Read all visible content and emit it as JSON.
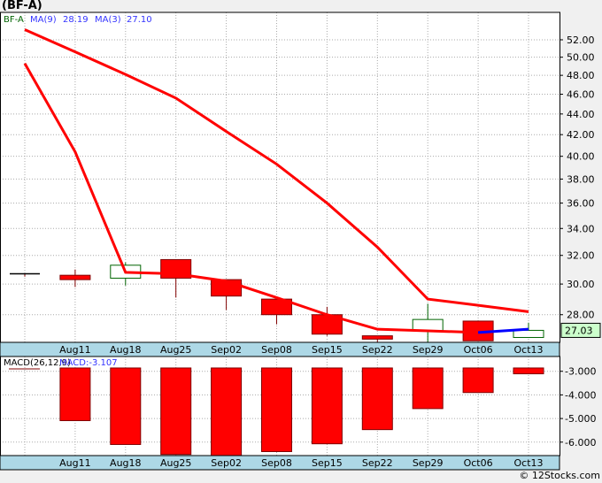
{
  "title": "(BF-A)",
  "footer": "© 12Stocks.com",
  "colors": {
    "up": "#006400",
    "down": "#ff0000",
    "ma9": "#ff0000",
    "ma3": "#ff0000",
    "ma3_last": "#0000ff",
    "band": "#add8e6",
    "last_price_bg": "#ccffcc"
  },
  "chart_data": [
    {
      "type": "candlestick",
      "title": "BF-A",
      "legend": {
        "symbol": "BF-A",
        "ma9_label": "MA(9)",
        "ma9_value": "28.19",
        "ma3_label": "MA(3)",
        "ma3_value": "27.10"
      },
      "categories": [
        "",
        "Aug11",
        "Aug18",
        "Aug25",
        "Sep02",
        "Sep08",
        "Sep15",
        "Sep22",
        "Sep29",
        "Oct06",
        "Oct13"
      ],
      "ohlc": [
        [
          30.7,
          30.7,
          30.5,
          30.7
        ],
        [
          30.6,
          31.0,
          29.8,
          30.3
        ],
        [
          30.4,
          31.5,
          29.9,
          31.3
        ],
        [
          31.7,
          31.7,
          29.1,
          30.4
        ],
        [
          30.3,
          30.3,
          28.3,
          29.2
        ],
        [
          29.0,
          29.0,
          27.4,
          28.0
        ],
        [
          28.0,
          28.5,
          26.7,
          26.8
        ],
        [
          26.7,
          26.7,
          26.1,
          26.5
        ],
        [
          27.0,
          28.7,
          26.3,
          27.7
        ],
        [
          27.6,
          27.6,
          26.4,
          26.4
        ],
        [
          26.6,
          27.5,
          26.6,
          27.03
        ]
      ],
      "ma9": [
        53.2,
        50.6,
        48.1,
        45.6,
        42.3,
        39.3,
        36.0,
        32.6,
        29.0,
        28.6,
        28.19
      ],
      "ma3": [
        49.3,
        40.4,
        30.8,
        30.7,
        30.2,
        29.1,
        28.0,
        27.1,
        27.0,
        26.9,
        27.1
      ],
      "y_ticks": [
        "52.00",
        "50.00",
        "48.00",
        "46.00",
        "44.00",
        "42.00",
        "40.00",
        "38.00",
        "36.00",
        "34.00",
        "32.00",
        "30.00",
        "28.00"
      ],
      "y_scale": "log",
      "ylim": [
        26.0,
        54.5
      ],
      "last_price": "27.03",
      "grid": true
    },
    {
      "type": "bar",
      "title": "MACD(26,12,9)",
      "legend": {
        "label": "MACD(26,12,9)",
        "value_label": "MACD:-3.107"
      },
      "categories": [
        "",
        "Aug11",
        "Aug18",
        "Aug25",
        "Sep02",
        "Sep08",
        "Sep15",
        "Sep22",
        "Sep29",
        "Oct06",
        "Oct13"
      ],
      "values": [
        null,
        -5.09,
        -6.1,
        -6.52,
        -6.6,
        -6.4,
        -6.07,
        -5.47,
        -4.58,
        -3.9,
        -3.107
      ],
      "baseline": -2.86,
      "y_ticks": [
        "-3.000",
        "-4.000",
        "-5.000",
        "-6.000"
      ],
      "ylim": [
        -6.6,
        -2.7
      ],
      "grid": true
    }
  ]
}
